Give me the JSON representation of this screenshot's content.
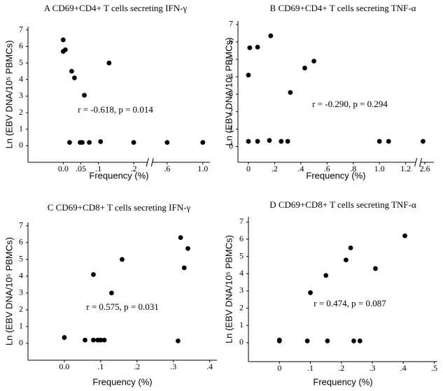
{
  "chart_data": [
    {
      "type": "scatter",
      "title": "A  CD69+CD4+ T cells secreting IFN-γ",
      "x_label": "Frequency (%)",
      "y_label": "Ln (EBV DNA/10⁵ PBMCs)",
      "annotation": "r = -0.618, p = 0.014",
      "color": "#000000",
      "x": [
        0.0,
        0.0,
        0.006,
        0.024,
        0.032,
        0.06,
        0.13,
        0.018,
        0.048,
        0.054,
        0.074,
        0.106,
        0.2,
        0.6,
        1.0
      ],
      "values": [
        6.4,
        5.7,
        5.8,
        4.5,
        4.1,
        3.05,
        5.0,
        0.2,
        0.2,
        0.2,
        0.2,
        0.25,
        0.2,
        0.2,
        0.2
      ],
      "xlim": [
        -0.1,
        1.08
      ],
      "xbreak": [
        0.24,
        0.43
      ],
      "xticks": [
        {
          "value": 0.0,
          "label": "0.0"
        },
        {
          "value": 0.05,
          "label": ".05"
        },
        {
          "value": 0.1,
          "label": ".1"
        },
        {
          "value": 0.2,
          "label": ".2"
        },
        {
          "value": 0.6,
          "label": ".6"
        },
        {
          "value": 1.0,
          "label": "1.0"
        }
      ],
      "ylim": [
        -1,
        7.2
      ],
      "yticks": [
        0,
        1,
        2,
        3,
        4,
        5,
        6,
        7
      ]
    },
    {
      "type": "scatter",
      "title": "B  CD69+CD4+ T cells secreting TNF-α",
      "x_label": "Frequency (%)",
      "y_label": "Ln (EBV DNA/10⁵ PBMCs)",
      "annotation": "r = -0.290, p = 0.294",
      "color": "#000000",
      "x": [
        0.0,
        0.01,
        0.07,
        0.17,
        0.43,
        0.5,
        0.32,
        0.0,
        0.07,
        0.16,
        0.25,
        0.3,
        1.0,
        1.07,
        2.58
      ],
      "values": [
        4.1,
        5.66,
        5.7,
        6.35,
        4.5,
        4.9,
        3.1,
        0.3,
        0.3,
        0.35,
        0.3,
        0.3,
        0.3,
        0.3,
        0.3
      ],
      "xlim": [
        -0.08,
        2.7
      ],
      "xbreak": [
        1.28,
        2.55
      ],
      "xticks": [
        0,
        {
          "value": 0.2,
          "label": ".2"
        },
        {
          "value": 0.4,
          "label": ".4"
        },
        {
          "value": 0.6,
          "label": ".6"
        },
        {
          "value": 0.8,
          "label": ".8"
        },
        {
          "value": 1.0,
          "label": "1.0"
        },
        1.2,
        2.6
      ],
      "ylim": [
        -0.9,
        7.2
      ],
      "yticks": [
        0,
        1,
        2,
        3,
        4,
        5,
        6,
        7
      ]
    },
    {
      "type": "scatter",
      "title": "C  CD69+CD8+ T cells secreting IFN-γ",
      "x_label": "Frequency (%)",
      "y_label": "Ln (EBV DNA/10⁵ PBMCs)",
      "annotation": "r = 0.575, p = 0.031",
      "color": "#000000",
      "x": [
        0.0,
        0.057,
        0.08,
        0.092,
        0.1,
        0.11,
        0.313,
        0.08,
        0.13,
        0.159,
        0.32,
        0.34,
        0.33
      ],
      "values": [
        0.35,
        0.2,
        0.2,
        0.2,
        0.2,
        0.2,
        0.15,
        4.1,
        3.0,
        5.0,
        6.3,
        5.65,
        4.5
      ],
      "xlim": [
        -0.1,
        0.42
      ],
      "xticks": [
        {
          "value": 0.0,
          "label": "0.0"
        },
        {
          "value": 0.1,
          "label": ".1"
        },
        {
          "value": 0.2,
          "label": ".2"
        },
        {
          "value": 0.3,
          "label": ".3"
        },
        {
          "value": 0.4,
          "label": ".4"
        }
      ],
      "ylim": [
        -1,
        7.2
      ],
      "yticks": [
        0,
        1,
        2,
        3,
        4,
        5,
        6,
        7
      ]
    },
    {
      "type": "scatter",
      "title": "D  CD69+CD8+ T cells secreting TNF-α",
      "x_label": "Frequency (%)",
      "y_label": "Ln (EBV DNA/10⁵ PBMCs)",
      "annotation": "r = 0.474, p = 0.087",
      "color": "#000000",
      "x": [
        0.0,
        0.0,
        0.09,
        0.155,
        0.24,
        0.26,
        0.1,
        0.15,
        0.215,
        0.23,
        0.31,
        0.405
      ],
      "values": [
        0.15,
        0.1,
        0.1,
        0.1,
        0.1,
        0.1,
        2.9,
        3.9,
        4.8,
        5.5,
        4.3,
        6.2
      ],
      "xlim": [
        -0.1,
        0.51
      ],
      "xticks": [
        0,
        {
          "value": 0.1,
          "label": ".1"
        },
        {
          "value": 0.2,
          "label": ".2"
        },
        {
          "value": 0.3,
          "label": ".3"
        },
        {
          "value": 0.4,
          "label": ".4"
        },
        {
          "value": 0.5,
          "label": ".5"
        }
      ],
      "ylim": [
        -1.1,
        7.3
      ],
      "yticks": [
        0,
        1,
        2,
        3,
        4,
        5,
        6,
        7
      ]
    }
  ]
}
